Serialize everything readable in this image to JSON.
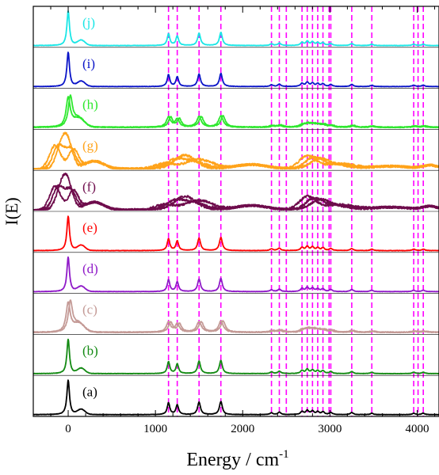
{
  "chart_data": {
    "type": "line",
    "xlabel": "Energy / cm",
    "xlabel_superscript": "-1",
    "ylabel": "I(E)",
    "xlim": [
      -400,
      4250
    ],
    "x_ticks": [
      {
        "value": 0,
        "label": "0"
      },
      {
        "value": 1000,
        "label": "1000"
      },
      {
        "value": 2000,
        "label": "2000"
      },
      {
        "value": 3000,
        "label": "3000"
      },
      {
        "value": 4000,
        "label": "4000"
      }
    ],
    "grid": false,
    "vertical_reference_lines": {
      "color": "#ff00ff",
      "style": "dashed",
      "x": [
        1150,
        1250,
        1500,
        1750,
        2330,
        2420,
        2500,
        2680,
        2740,
        2800,
        2860,
        2920,
        2990,
        3010,
        3250,
        3480,
        3960,
        4010,
        4070
      ]
    },
    "series": [
      {
        "name": "(a)",
        "color": "#000000",
        "kind": "sharp"
      },
      {
        "name": "(b)",
        "color": "#138a13",
        "kind": "sharp"
      },
      {
        "name": "(c)",
        "color": "#c49a96",
        "kind": "medium"
      },
      {
        "name": "(d)",
        "color": "#8f19c8",
        "kind": "sharp"
      },
      {
        "name": "(e)",
        "color": "#ff0000",
        "kind": "sharp"
      },
      {
        "name": "(f)",
        "color": "#6e0c4c",
        "kind": "broad"
      },
      {
        "name": "(g)",
        "color": "#ffa31a",
        "kind": "broad"
      },
      {
        "name": "(h)",
        "color": "#2ee82e",
        "kind": "medium"
      },
      {
        "name": "(i)",
        "color": "#0a14c8",
        "kind": "sharp"
      },
      {
        "name": "(j)",
        "color": "#19e6e6",
        "kind": "sharp"
      }
    ],
    "sharp_peaks": [
      {
        "x": 0,
        "height": 1.0,
        "width": 18
      },
      {
        "x": 1150,
        "height": 0.34,
        "width": 18
      },
      {
        "x": 1250,
        "height": 0.28,
        "width": 18
      },
      {
        "x": 1500,
        "height": 0.36,
        "width": 20
      },
      {
        "x": 1750,
        "height": 0.38,
        "width": 20
      },
      {
        "x": 2330,
        "height": 0.05,
        "width": 20
      },
      {
        "x": 2420,
        "height": 0.07,
        "width": 20
      },
      {
        "x": 2680,
        "height": 0.09,
        "width": 20
      },
      {
        "x": 2740,
        "height": 0.12,
        "width": 20
      },
      {
        "x": 2800,
        "height": 0.1,
        "width": 20
      },
      {
        "x": 2860,
        "height": 0.08,
        "width": 20
      },
      {
        "x": 2920,
        "height": 0.08,
        "width": 20
      },
      {
        "x": 3010,
        "height": 0.06,
        "width": 20
      },
      {
        "x": 3250,
        "height": 0.06,
        "width": 20
      },
      {
        "x": 3480,
        "height": 0.04,
        "width": 20
      },
      {
        "x": 3960,
        "height": 0.04,
        "width": 20
      },
      {
        "x": 4070,
        "height": 0.04,
        "width": 20
      }
    ]
  }
}
